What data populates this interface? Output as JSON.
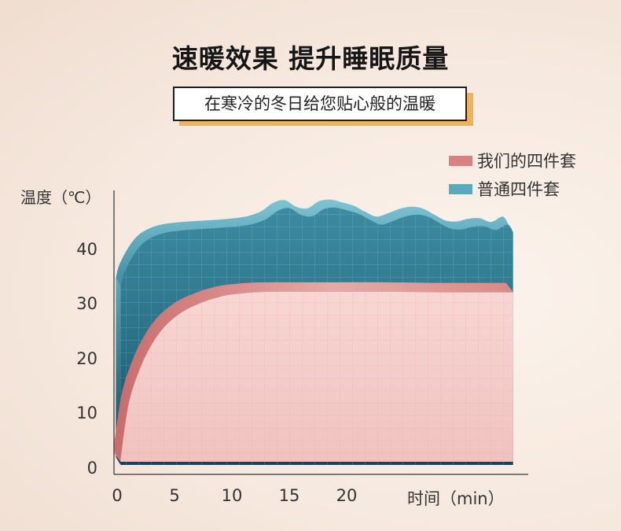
{
  "header": {
    "title": "速暖效果 提升睡眠质量",
    "subtitle": "在寒冷的冬日给您贴心般的温暖"
  },
  "colors": {
    "pink_series": "#d9817f",
    "blue_series": "#5aa9bd",
    "subtitle_shadow": "#f0b35a"
  },
  "chart_data": {
    "type": "area",
    "xlabel": "时间（min）",
    "ylabel": "温度（℃）",
    "x_ticks": [
      "0",
      "5",
      "10",
      "15",
      "20"
    ],
    "y_ticks": [
      "0",
      "10",
      "20",
      "30",
      "40"
    ],
    "xlim": [
      0,
      35
    ],
    "ylim": [
      0,
      48
    ],
    "legend_position": "top-right",
    "grid": true,
    "series": [
      {
        "name": "我们的四件套",
        "x": [
          0.3,
          1,
          2,
          3,
          4,
          5,
          6,
          7,
          8,
          9,
          10,
          12,
          14,
          16,
          20,
          24,
          28,
          32,
          34.5
        ],
        "values": [
          2,
          12,
          18.5,
          22.8,
          25.8,
          27.8,
          29.2,
          30.2,
          31,
          31.6,
          32,
          32.4,
          32.5,
          32.5,
          32.5,
          32.5,
          32.4,
          32.4,
          32.4
        ]
      },
      {
        "name": "普通四件套",
        "x": [
          0.3,
          0.6,
          1.5,
          2.5,
          4,
          6,
          9,
          11,
          12,
          13,
          14,
          15,
          16,
          17,
          18,
          19,
          20,
          21,
          22,
          23,
          24,
          25,
          26,
          27,
          28,
          29,
          30,
          31,
          32,
          33,
          34,
          34.5
        ],
        "values": [
          33.5,
          36,
          39.5,
          41.8,
          43.2,
          43.8,
          44.2,
          44.6,
          45,
          45.8,
          47.3,
          47.8,
          46.6,
          46.3,
          47.6,
          47.9,
          47.4,
          46.8,
          45.7,
          44.8,
          45.4,
          46.2,
          46.6,
          46.3,
          45.2,
          44.1,
          43.9,
          44.4,
          44.5,
          43.8,
          44.8,
          43.4
        ]
      }
    ]
  }
}
